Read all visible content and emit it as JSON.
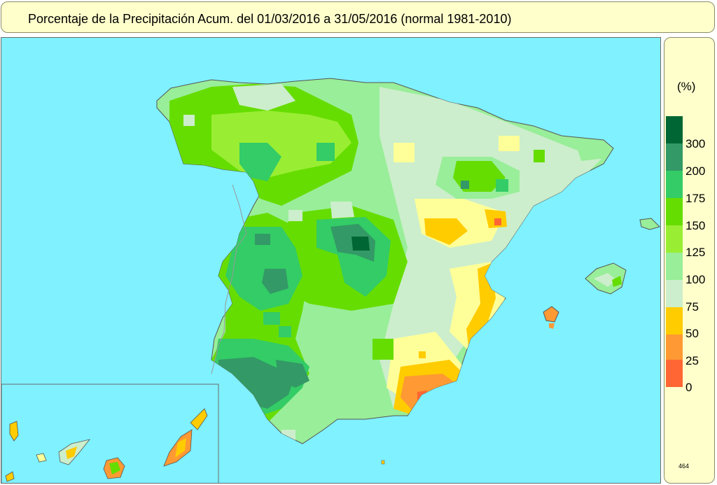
{
  "title": "Porcentaje de la Precipitación Acum. del 01/03/2016 a  31/05/2016  (normal 1981-2010)",
  "legend": {
    "unit": "(%)",
    "labels": [
      "300",
      "200",
      "175",
      "150",
      "125",
      "100",
      "75",
      "50",
      "25",
      "0"
    ],
    "colors": [
      "#006633",
      "#339966",
      "#33cc66",
      "#66dd00",
      "#99ee33",
      "#99ee99",
      "#cceecc",
      "#ffff99",
      "#ffcc00",
      "#ff9933",
      "#ff6633"
    ],
    "code": "464"
  },
  "map": {
    "sea_color": "#7ff1ff",
    "land_base_color": "#99ee99",
    "inset": "canary-islands"
  }
}
